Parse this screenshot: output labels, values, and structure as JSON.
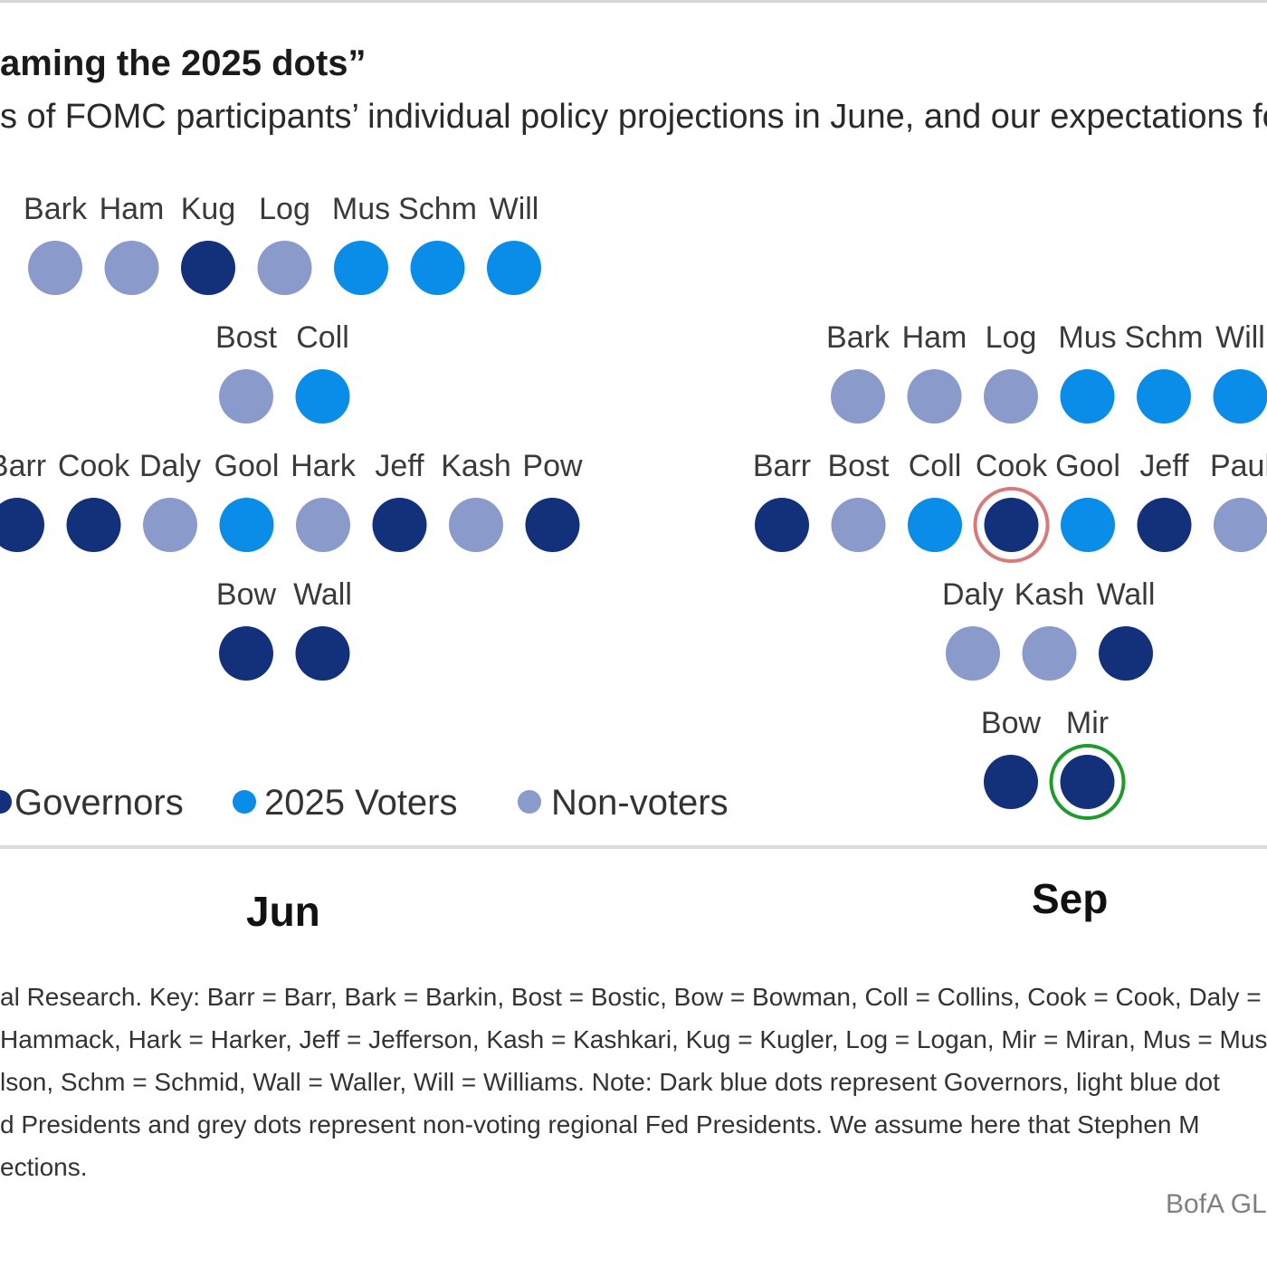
{
  "title": "aming the 2025 dots”",
  "subtitle": "s of FOMC participants’ individual policy projections in June, and our expectations fo",
  "colors": {
    "governor": "#13317a",
    "voter": "#0a8de8",
    "nonvoter": "#8a9bcb",
    "highlight_red": "#d97a7a",
    "highlight_green": "#1f9b2e"
  },
  "chart_data": {
    "type": "scatter",
    "description_label": "dot plot",
    "legend": [
      {
        "key": "governor",
        "label": "Governors"
      },
      {
        "key": "voter",
        "label": "2025 Voters"
      },
      {
        "key": "nonvoter",
        "label": "Non-voters"
      }
    ],
    "periods": [
      {
        "label": "Jun",
        "levels": [
          [
            {
              "name": "Bark",
              "group": "nonvoter"
            },
            {
              "name": "Ham",
              "group": "nonvoter"
            },
            {
              "name": "Kug",
              "group": "governor"
            },
            {
              "name": "Log",
              "group": "nonvoter"
            },
            {
              "name": "Mus",
              "group": "voter"
            },
            {
              "name": "Schm",
              "group": "voter"
            },
            {
              "name": "Will",
              "group": "voter"
            }
          ],
          [
            {
              "name": "Bost",
              "group": "nonvoter"
            },
            {
              "name": "Coll",
              "group": "voter"
            }
          ],
          [
            {
              "name": "Barr",
              "group": "governor"
            },
            {
              "name": "Cook",
              "group": "governor"
            },
            {
              "name": "Daly",
              "group": "nonvoter"
            },
            {
              "name": "Gool",
              "group": "voter"
            },
            {
              "name": "Hark",
              "group": "nonvoter"
            },
            {
              "name": "Jeff",
              "group": "governor"
            },
            {
              "name": "Kash",
              "group": "nonvoter"
            },
            {
              "name": "Pow",
              "group": "governor"
            }
          ],
          [
            {
              "name": "Bow",
              "group": "governor"
            },
            {
              "name": "Wall",
              "group": "governor"
            }
          ]
        ]
      },
      {
        "label": "Sep",
        "levels": [
          [
            {
              "name": "Bark",
              "group": "nonvoter"
            },
            {
              "name": "Ham",
              "group": "nonvoter"
            },
            {
              "name": "Log",
              "group": "nonvoter"
            },
            {
              "name": "Mus",
              "group": "voter"
            },
            {
              "name": "Schm",
              "group": "voter"
            },
            {
              "name": "Will",
              "group": "voter"
            }
          ],
          [
            {
              "name": "Barr",
              "group": "governor"
            },
            {
              "name": "Bost",
              "group": "nonvoter"
            },
            {
              "name": "Coll",
              "group": "voter"
            },
            {
              "name": "Cook",
              "group": "governor",
              "highlight": "red"
            },
            {
              "name": "Gool",
              "group": "voter"
            },
            {
              "name": "Jeff",
              "group": "governor"
            },
            {
              "name": "Paul",
              "group": "nonvoter"
            }
          ],
          [
            {
              "name": "Daly",
              "group": "nonvoter"
            },
            {
              "name": "Kash",
              "group": "nonvoter"
            },
            {
              "name": "Wall",
              "group": "governor"
            }
          ],
          [
            {
              "name": "Bow",
              "group": "governor"
            },
            {
              "name": "Mir",
              "group": "governor",
              "highlight": "green"
            }
          ]
        ]
      }
    ]
  },
  "source_lines": [
    "al Research. Key: Barr = Barr, Bark = Barkin, Bost = Bostic, Bow = Bowman, Coll = Collins, Cook = Cook, Daly =",
    "Hammack, Hark = Harker, Jeff = Jefferson, Kash = Kashkari, Kug = Kugler, Log = Logan, Mir = Miran, Mus = Mus",
    "lson, Schm = Schmid, Wall = Waller, Will = Williams. Note: Dark blue dots represent Governors, light blue dot",
    "d Presidents and grey dots represent non-voting regional Fed Presidents. We assume here that Stephen M",
    "ections."
  ],
  "credit": "BofA GL"
}
